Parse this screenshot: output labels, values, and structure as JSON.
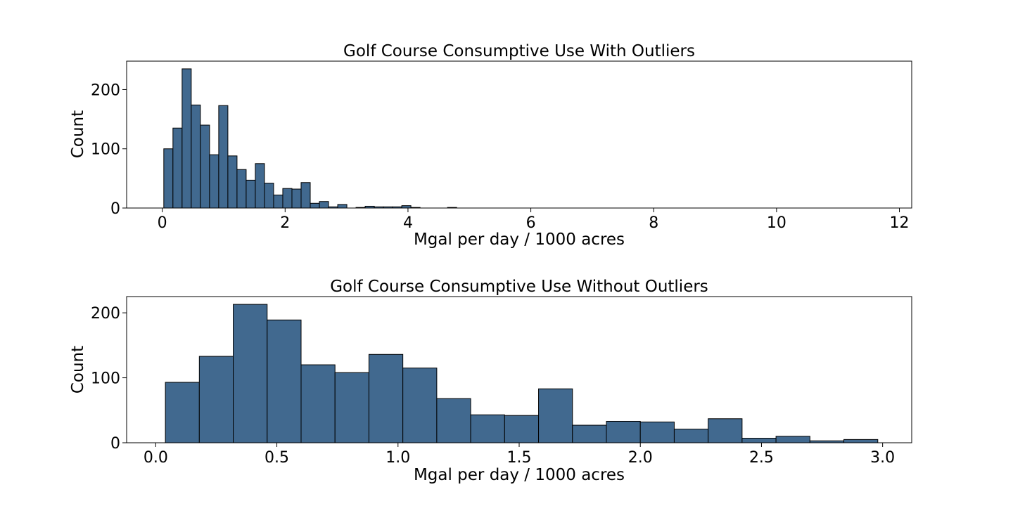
{
  "figure": {
    "suptitle": "",
    "bar_color": "#41698f",
    "edge_color": "#000000"
  },
  "chart_data": [
    {
      "type": "bar",
      "title": "Golf Course Consumptive Use With Outliers",
      "xlabel": "Mgal per day / 1000 acres",
      "ylabel": "Count",
      "xlim": [
        -0.58,
        12.2
      ],
      "ylim": [
        0,
        248
      ],
      "xticks": [
        0,
        2,
        4,
        6,
        8,
        10,
        12
      ],
      "yticks": [
        0,
        100,
        200
      ],
      "bin_start": 0.025,
      "bin_width": 0.149,
      "values": [
        100,
        135,
        235,
        174,
        140,
        90,
        173,
        88,
        65,
        47,
        75,
        42,
        22,
        33,
        32,
        43,
        8,
        11,
        2,
        6,
        0,
        1,
        3,
        2,
        2,
        2,
        4,
        1,
        0,
        0,
        0,
        1
      ]
    },
    {
      "type": "bar",
      "title": "Golf Course Consumptive Use Without Outliers",
      "xlabel": "Mgal per day / 1000 acres",
      "ylabel": "Count",
      "xlim": [
        -0.12,
        3.12
      ],
      "ylim": [
        0,
        225
      ],
      "xticks": [
        "0.0",
        "0.5",
        "1.0",
        "1.5",
        "2.0",
        "2.5",
        "3.0"
      ],
      "yticks": [
        0,
        100,
        200
      ],
      "bin_start": 0.04,
      "bin_width": 0.14,
      "values": [
        93,
        133,
        213,
        189,
        120,
        108,
        136,
        115,
        68,
        43,
        42,
        83,
        27,
        33,
        32,
        21,
        37,
        7,
        10,
        3,
        5
      ]
    }
  ]
}
